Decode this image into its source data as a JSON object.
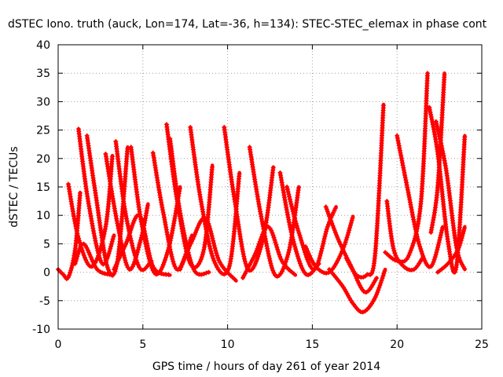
{
  "chart_data": {
    "type": "scatter",
    "title": "dSTEC Iono. truth (auck, Lon=174, Lat=-36, h=134): STEC-STEC_elemax in phase cont",
    "xlabel": "GPS time / hours of day 261 of year 2014",
    "ylabel": "dSTEC  / TECUs",
    "xlim": [
      0,
      25
    ],
    "ylim": [
      -10,
      40
    ],
    "xticks": [
      0,
      5,
      10,
      15,
      20,
      25
    ],
    "yticks": [
      -10,
      -5,
      0,
      5,
      10,
      15,
      20,
      25,
      30,
      35,
      40
    ],
    "grid": true,
    "marker": "+",
    "color": "#ff0000",
    "series": [
      {
        "x": [
          0.0,
          0.3,
          0.6,
          1.0,
          1.3
        ],
        "y": [
          0.5,
          -0.4,
          -0.9,
          4.0,
          14.0
        ]
      },
      {
        "x": [
          0.6,
          1.2,
          2.0,
          2.8,
          3.2
        ],
        "y": [
          15.5,
          6.0,
          1.0,
          8.0,
          20.5
        ]
      },
      {
        "x": [
          1.2,
          1.8,
          2.6,
          3.3
        ],
        "y": [
          25.2,
          12.0,
          1.5,
          6.5
        ]
      },
      {
        "x": [
          1.7,
          2.2,
          2.9,
          3.5,
          4.1
        ],
        "y": [
          24.0,
          14.0,
          1.0,
          2.0,
          22.0
        ]
      },
      {
        "x": [
          1.0,
          1.5,
          2.3,
          3.2
        ],
        "y": [
          1.5,
          5.0,
          0.5,
          -0.5
        ]
      },
      {
        "x": [
          2.8,
          3.5,
          4.2,
          4.9,
          5.3
        ],
        "y": [
          20.8,
          8.5,
          0.5,
          6.0,
          12.0
        ]
      },
      {
        "x": [
          3.4,
          4.0,
          4.8,
          5.5
        ],
        "y": [
          23.0,
          10.0,
          0.8,
          2.0
        ]
      },
      {
        "x": [
          4.3,
          4.9,
          5.7,
          6.5,
          7.2
        ],
        "y": [
          22.0,
          9.0,
          -0.2,
          4.0,
          15.0
        ]
      },
      {
        "x": [
          3.3,
          4.0,
          4.8,
          5.6,
          6.6
        ],
        "y": [
          0.5,
          5.0,
          10.0,
          1.0,
          -0.5
        ]
      },
      {
        "x": [
          5.6,
          6.2,
          7.0,
          7.9
        ],
        "y": [
          21.0,
          10.5,
          0.5,
          6.5
        ]
      },
      {
        "x": [
          6.4,
          7.0,
          7.8,
          8.6,
          9.1
        ],
        "y": [
          26.0,
          13.0,
          1.5,
          4.0,
          18.8
        ]
      },
      {
        "x": [
          6.6,
          7.2,
          8.0,
          8.9
        ],
        "y": [
          23.5,
          10.5,
          0.5,
          0.0
        ]
      },
      {
        "x": [
          7.8,
          8.4,
          9.2,
          10.1,
          10.7
        ],
        "y": [
          25.5,
          13.0,
          2.0,
          1.0,
          17.5
        ]
      },
      {
        "x": [
          7.2,
          7.9,
          8.7,
          9.5,
          10.5
        ],
        "y": [
          0.5,
          5.5,
          9.5,
          2.0,
          -1.5
        ]
      },
      {
        "x": [
          9.8,
          10.4,
          11.2,
          12.1,
          12.7
        ],
        "y": [
          25.5,
          13.0,
          0.5,
          6.0,
          18.5
        ]
      },
      {
        "x": [
          11.3,
          12.0,
          12.8,
          13.6,
          14.2
        ],
        "y": [
          22.0,
          9.5,
          -0.5,
          3.5,
          15.0
        ]
      },
      {
        "x": [
          10.9,
          11.6,
          12.4,
          13.2,
          14.0
        ],
        "y": [
          -1.0,
          3.0,
          8.0,
          2.0,
          -0.5
        ]
      },
      {
        "x": [
          13.1,
          13.8,
          14.6,
          15.4
        ],
        "y": [
          17.5,
          6.5,
          -0.3,
          1.5
        ]
      },
      {
        "x": [
          13.5,
          14.2,
          15.1,
          15.9,
          16.4
        ],
        "y": [
          15.0,
          7.0,
          0.5,
          8.0,
          11.5
        ]
      },
      {
        "x": [
          14.6,
          15.2,
          16.0,
          16.8,
          17.4
        ],
        "y": [
          4.5,
          1.0,
          0.0,
          4.0,
          9.8
        ]
      },
      {
        "x": [
          15.8,
          16.5,
          17.3,
          18.1,
          18.8
        ],
        "y": [
          11.5,
          6.0,
          1.0,
          -3.5,
          -1.0
        ]
      },
      {
        "x": [
          16.0,
          16.8,
          17.4,
          18.0,
          18.7,
          19.3
        ],
        "y": [
          0.5,
          -2.5,
          -5.5,
          -7.0,
          -4.5,
          0.5
        ]
      },
      {
        "x": [
          17.0,
          17.6,
          18.2,
          18.7,
          19.2
        ],
        "y": [
          2.5,
          -0.5,
          -0.5,
          3.0,
          29.5
        ]
      },
      {
        "x": [
          19.4,
          19.8,
          20.4,
          21.0,
          21.5
        ],
        "y": [
          12.5,
          4.0,
          1.0,
          0.5,
          2.5
        ]
      },
      {
        "x": [
          19.3,
          20.0,
          20.7,
          21.4,
          21.8
        ],
        "y": [
          3.5,
          2.0,
          3.0,
          12.0,
          35.0
        ]
      },
      {
        "x": [
          20.0,
          20.6,
          21.3,
          22.0,
          22.7
        ],
        "y": [
          24.0,
          15.0,
          5.0,
          1.0,
          8.0
        ]
      },
      {
        "x": [
          21.9,
          22.4,
          23.0,
          23.5,
          24.0
        ],
        "y": [
          29.0,
          21.0,
          5.5,
          1.0,
          24.0
        ]
      },
      {
        "x": [
          22.0,
          22.4,
          22.8
        ],
        "y": [
          7.0,
          15.0,
          35.0
        ]
      },
      {
        "x": [
          22.3,
          22.9,
          23.5,
          24.0
        ],
        "y": [
          26.5,
          18.0,
          4.5,
          0.5
        ]
      },
      {
        "x": [
          22.4,
          23.0,
          23.6,
          24.0
        ],
        "y": [
          0.0,
          1.5,
          4.0,
          8.0
        ]
      }
    ]
  }
}
